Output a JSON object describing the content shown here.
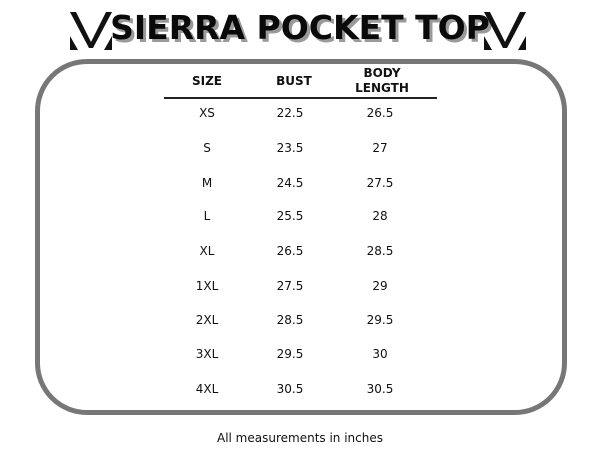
{
  "title": "SIERRA POCKET TOP",
  "logo": {
    "icon": "v-monogram-logo"
  },
  "table": {
    "headers": [
      "SIZE",
      "BUST",
      "BODY LENGTH"
    ],
    "rows": [
      [
        "XS",
        "22.5",
        "26.5"
      ],
      [
        "S",
        "23.5",
        "27"
      ],
      [
        "M",
        "24.5",
        "27.5"
      ],
      [
        "L",
        "25.5",
        "28"
      ],
      [
        "XL",
        "26.5",
        "28.5"
      ],
      [
        "1XL",
        "27.5",
        "29"
      ],
      [
        "2XL",
        "28.5",
        "29.5"
      ],
      [
        "3XL",
        "29.5",
        "30"
      ],
      [
        "4XL",
        "30.5",
        "30.5"
      ]
    ]
  },
  "footnote": "All measurements in inches",
  "colors": {
    "frame": "#777777",
    "text": "#111111",
    "title_shadow": "#9a9a9a"
  }
}
